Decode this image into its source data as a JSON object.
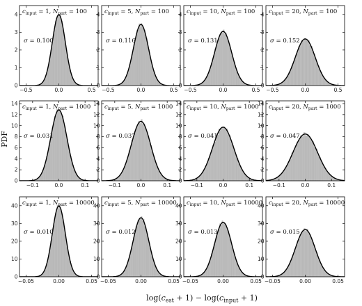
{
  "chart_data": {
    "type": "bar",
    "ylabel": "PDF",
    "xlabel": "log(c_est + 1) − log(c_input + 1)",
    "grid": false,
    "legend": "none",
    "colors": {
      "hist": "#bdbdbd",
      "hist_edge": "#a8a8a8",
      "curve": "#000000",
      "frame": "#000000"
    },
    "rows": [
      {
        "n_part": "100",
        "xlim": [
          -0.6,
          0.6
        ],
        "xticks": [
          -0.5,
          0.0,
          0.5
        ],
        "xtick_labels": [
          "−0.5",
          "0.0",
          "0.5"
        ],
        "ylim": [
          0,
          4.5
        ],
        "yticks": [
          0,
          1,
          2,
          3,
          4
        ],
        "ytick_labels": [
          "0",
          "1",
          "2",
          "3",
          "4"
        ],
        "panels": [
          {
            "c_input": "1",
            "label_html": "c_input = 1, N_part = 100",
            "sigma": 0.1,
            "sigma_label": "σ = 0.100"
          },
          {
            "c_input": "5",
            "label_html": "c_input = 5, N_part = 100",
            "sigma": 0.116,
            "sigma_label": "σ = 0.116"
          },
          {
            "c_input": "10",
            "label_html": "c_input = 10, N_part = 100",
            "sigma": 0.131,
            "sigma_label": "σ = 0.131"
          },
          {
            "c_input": "20",
            "label_html": "c_input = 20, N_part = 100",
            "sigma": 0.152,
            "sigma_label": "σ = 0.152"
          }
        ]
      },
      {
        "n_part": "1000",
        "xlim": [
          -0.15,
          0.15
        ],
        "xticks": [
          -0.1,
          0.0,
          0.1
        ],
        "xtick_labels": [
          "−0.1",
          "0.0",
          "0.1"
        ],
        "ylim": [
          0,
          14.5
        ],
        "yticks": [
          0,
          2,
          4,
          6,
          8,
          10,
          12,
          14
        ],
        "ytick_labels": [
          "0",
          "2",
          "4",
          "6",
          "8",
          "10",
          "12",
          "14"
        ],
        "panels": [
          {
            "c_input": "1",
            "sigma": 0.031,
            "sigma_label": "σ = 0.031"
          },
          {
            "c_input": "5",
            "sigma": 0.037,
            "sigma_label": "σ = 0.037"
          },
          {
            "c_input": "10",
            "sigma": 0.041,
            "sigma_label": "σ = 0.041"
          },
          {
            "c_input": "20",
            "sigma": 0.047,
            "sigma_label": "σ = 0.047"
          }
        ]
      },
      {
        "n_part": "10000",
        "xlim": [
          -0.06,
          0.06
        ],
        "xticks": [
          -0.05,
          0.0,
          0.05
        ],
        "xtick_labels": [
          "−0.05",
          "0.00",
          "0.05"
        ],
        "ylim": [
          0,
          45
        ],
        "yticks": [
          0,
          10,
          20,
          30,
          40
        ],
        "ytick_labels": [
          "0",
          "10",
          "20",
          "30",
          "40"
        ],
        "panels": [
          {
            "c_input": "1",
            "sigma": 0.01,
            "sigma_label": "σ = 0.010"
          },
          {
            "c_input": "5",
            "sigma": 0.012,
            "sigma_label": "σ = 0.012"
          },
          {
            "c_input": "10",
            "sigma": 0.013,
            "sigma_label": "σ = 0.013"
          },
          {
            "c_input": "20",
            "sigma": 0.015,
            "sigma_label": "σ = 0.015"
          }
        ]
      }
    ]
  }
}
